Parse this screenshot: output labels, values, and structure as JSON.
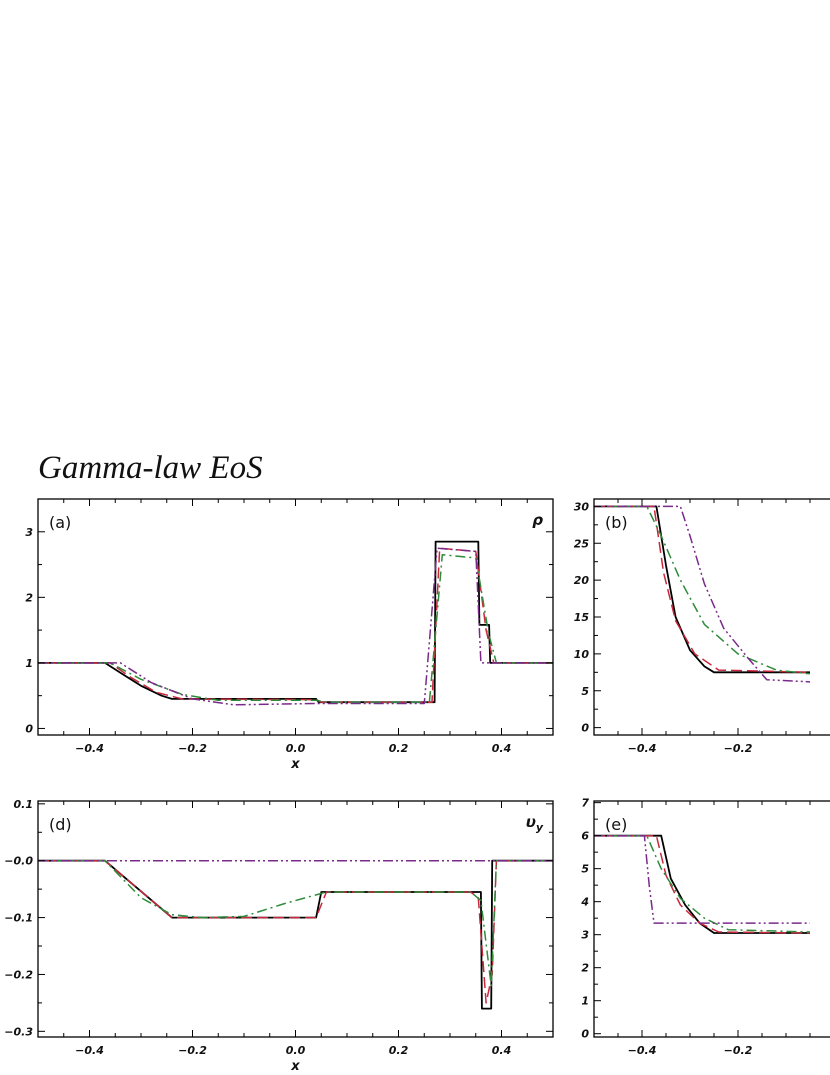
{
  "figure_title": "Gamma-law EoS",
  "colors": {
    "solid": "#000000",
    "red": "#c8283c",
    "green": "#2e8b3a",
    "purple": "#7a2a8a"
  },
  "chart_data": [
    {
      "type": "line",
      "panel_label": "(a)",
      "variable_label": "ρ",
      "xlabel": "x",
      "xlim": [
        -0.5,
        0.5
      ],
      "ylim": [
        -0.1,
        3.5
      ],
      "xticks": [
        "-0.4",
        "-0.2",
        "0.0",
        "0.2",
        "0.4"
      ],
      "yticks": [
        "0",
        "1",
        "2",
        "3"
      ],
      "series": [
        {
          "style": "solid",
          "color": "solid",
          "x": [
            -0.5,
            -0.37,
            -0.34,
            -0.3,
            -0.26,
            -0.24,
            0.04,
            0.045,
            0.27,
            0.272,
            0.355,
            0.357,
            0.376,
            0.378,
            0.5
          ],
          "y": [
            1.0,
            1.0,
            0.85,
            0.65,
            0.5,
            0.45,
            0.45,
            0.4,
            0.4,
            2.85,
            2.85,
            1.58,
            1.58,
            1.0,
            1.0
          ]
        },
        {
          "style": "longdash",
          "color": "red",
          "x": [
            -0.5,
            -0.36,
            -0.32,
            -0.27,
            -0.22,
            0.04,
            0.05,
            0.265,
            0.28,
            0.35,
            0.37,
            0.385,
            0.5
          ],
          "y": [
            1.0,
            1.0,
            0.78,
            0.55,
            0.45,
            0.44,
            0.4,
            0.4,
            2.75,
            2.7,
            1.5,
            1.0,
            1.0
          ]
        },
        {
          "style": "dashdot",
          "color": "green",
          "x": [
            -0.5,
            -0.36,
            -0.3,
            -0.22,
            -0.15,
            0.04,
            0.06,
            0.26,
            0.285,
            0.35,
            0.375,
            0.39,
            0.5
          ],
          "y": [
            1.0,
            1.0,
            0.75,
            0.52,
            0.43,
            0.43,
            0.4,
            0.4,
            2.65,
            2.6,
            1.45,
            1.0,
            1.0
          ]
        },
        {
          "style": "dashdotdot",
          "color": "purple",
          "x": [
            -0.5,
            -0.34,
            -0.28,
            -0.2,
            -0.12,
            0.04,
            0.25,
            0.275,
            0.35,
            0.36,
            0.375,
            0.5
          ],
          "y": [
            1.0,
            1.0,
            0.7,
            0.45,
            0.36,
            0.38,
            0.38,
            2.75,
            2.7,
            1.0,
            1.0,
            1.0
          ]
        }
      ]
    },
    {
      "type": "line",
      "panel_label": "(b)",
      "xlim": [
        -0.5,
        0.5
      ],
      "ylim": [
        -1,
        31
      ],
      "xticks": [
        "-0.4",
        "-0.2"
      ],
      "yticks": [
        "0",
        "5",
        "10",
        "15",
        "20",
        "25",
        "30"
      ],
      "series": [
        {
          "style": "solid",
          "color": "solid",
          "x": [
            -0.5,
            -0.37,
            -0.35,
            -0.33,
            -0.3,
            -0.27,
            -0.25,
            -0.05
          ],
          "y": [
            30,
            30,
            22,
            15,
            10.5,
            8.3,
            7.5,
            7.5
          ]
        },
        {
          "style": "longdash",
          "color": "red",
          "x": [
            -0.5,
            -0.375,
            -0.355,
            -0.33,
            -0.29,
            -0.24,
            -0.05
          ],
          "y": [
            30,
            30,
            21,
            14.5,
            10.0,
            7.8,
            7.5
          ]
        },
        {
          "style": "dashdot",
          "color": "green",
          "x": [
            -0.5,
            -0.39,
            -0.36,
            -0.32,
            -0.27,
            -0.2,
            -0.12,
            -0.05
          ],
          "y": [
            30,
            30,
            26,
            20,
            14,
            10,
            7.8,
            7.3
          ]
        },
        {
          "style": "dashdotdot",
          "color": "purple",
          "x": [
            -0.5,
            -0.32,
            -0.3,
            -0.27,
            -0.23,
            -0.18,
            -0.14,
            -0.05
          ],
          "y": [
            30,
            30,
            26,
            19.5,
            13.5,
            9.5,
            6.5,
            6.2
          ]
        }
      ]
    },
    {
      "type": "line",
      "panel_label": "(d)",
      "variable_label": "vy",
      "xlabel": "x",
      "xlim": [
        -0.5,
        0.5
      ],
      "ylim": [
        -0.31,
        0.105
      ],
      "xticks": [
        "-0.4",
        "-0.2",
        "0.0",
        "0.2",
        "0.4"
      ],
      "yticks": [
        "-0.3",
        "-0.2",
        "-0.1",
        "-0.0",
        "0.1"
      ],
      "series": [
        {
          "style": "solid",
          "color": "solid",
          "x": [
            -0.5,
            -0.37,
            -0.24,
            0.04,
            0.05,
            0.36,
            0.362,
            0.38,
            0.382,
            0.5
          ],
          "y": [
            0,
            0,
            -0.1,
            -0.1,
            -0.055,
            -0.055,
            -0.26,
            -0.26,
            0,
            0
          ]
        },
        {
          "style": "longdash",
          "color": "red",
          "x": [
            -0.5,
            -0.37,
            -0.24,
            0.04,
            0.06,
            0.34,
            0.355,
            0.37,
            0.382,
            0.39,
            0.5
          ],
          "y": [
            0,
            0,
            -0.1,
            -0.1,
            -0.055,
            -0.055,
            -0.065,
            -0.25,
            -0.2,
            0,
            0
          ]
        },
        {
          "style": "dashdot",
          "color": "green",
          "x": [
            -0.5,
            -0.37,
            -0.3,
            -0.24,
            -0.18,
            -0.1,
            -0.02,
            0.06,
            0.34,
            0.36,
            0.38,
            0.39,
            0.5
          ],
          "y": [
            0,
            0,
            -0.065,
            -0.095,
            -0.1,
            -0.098,
            -0.075,
            -0.055,
            -0.055,
            -0.07,
            -0.22,
            0,
            0
          ]
        },
        {
          "style": "dashdotdot",
          "color": "purple",
          "x": [
            -0.5,
            0.5
          ],
          "y": [
            0,
            0
          ]
        }
      ]
    },
    {
      "type": "line",
      "panel_label": "(e)",
      "xlim": [
        -0.5,
        0.5
      ],
      "ylim": [
        -0.1,
        7.05
      ],
      "xticks": [
        "-0.4",
        "-0.2"
      ],
      "yticks": [
        "0",
        "1",
        "2",
        "3",
        "4",
        "5",
        "6",
        "7"
      ],
      "series": [
        {
          "style": "solid",
          "color": "solid",
          "x": [
            -0.5,
            -0.36,
            -0.34,
            -0.31,
            -0.28,
            -0.25,
            -0.05
          ],
          "y": [
            6.0,
            6.0,
            4.7,
            3.9,
            3.35,
            3.05,
            3.05
          ]
        },
        {
          "style": "longdash",
          "color": "red",
          "x": [
            -0.5,
            -0.37,
            -0.35,
            -0.32,
            -0.28,
            -0.24,
            -0.05
          ],
          "y": [
            6.0,
            6.0,
            4.8,
            3.9,
            3.35,
            3.08,
            3.05
          ]
        },
        {
          "style": "dashdot",
          "color": "green",
          "x": [
            -0.5,
            -0.39,
            -0.36,
            -0.32,
            -0.27,
            -0.22,
            -0.05
          ],
          "y": [
            6.0,
            6.0,
            5.0,
            4.1,
            3.5,
            3.15,
            3.08
          ]
        },
        {
          "style": "dashdotdot",
          "color": "purple",
          "x": [
            -0.5,
            -0.395,
            -0.385,
            -0.375,
            -0.05
          ],
          "y": [
            6.0,
            6.0,
            4.5,
            3.35,
            3.35
          ]
        }
      ]
    }
  ]
}
